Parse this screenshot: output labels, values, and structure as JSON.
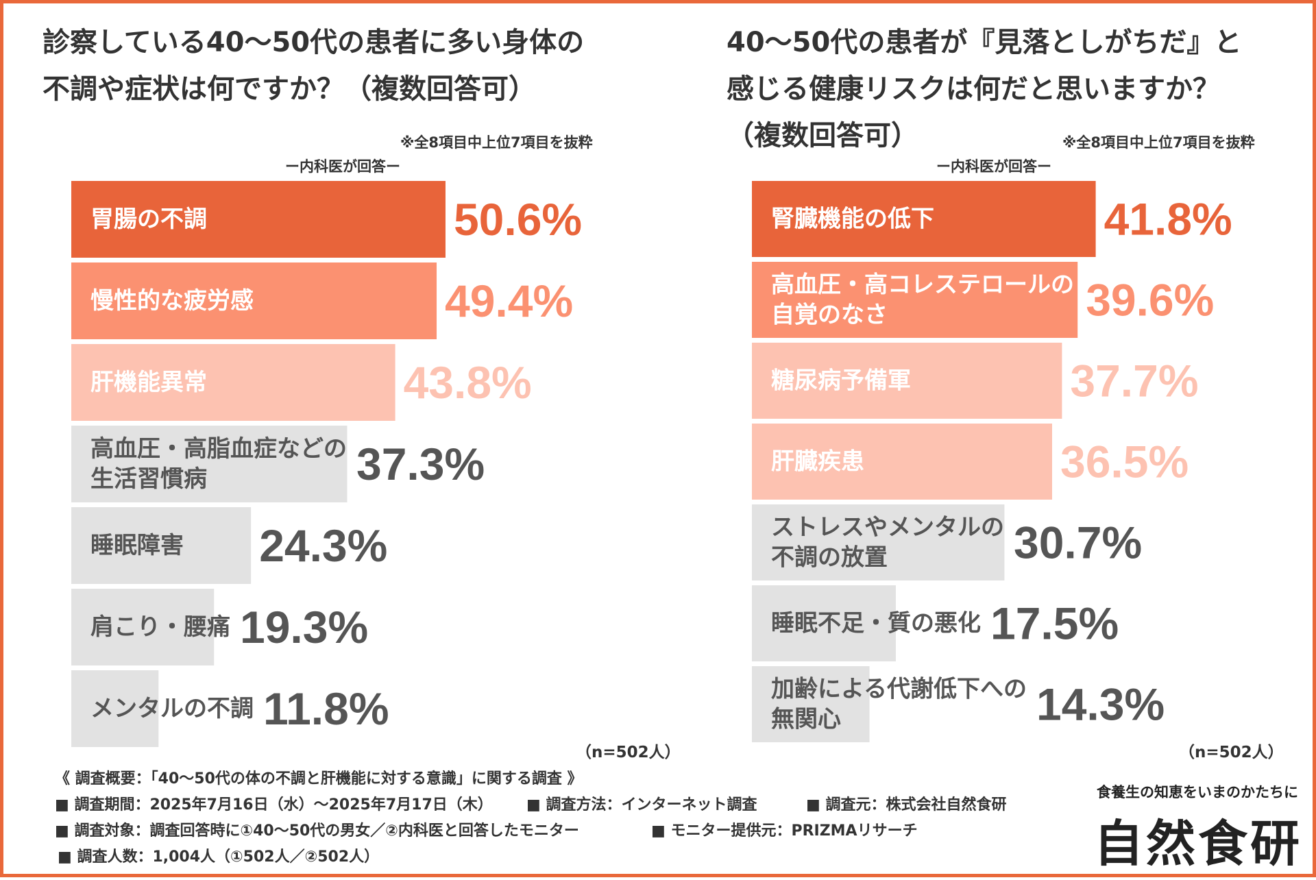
{
  "left": {
    "title_lines": [
      "診察している40〜50代の患者に多い身体の",
      "不調や症状は何ですか？（複数回答可）"
    ],
    "note": "※全8項目中上位7項目を抜粋",
    "respondent": "ー内科医が回答ー",
    "n": "（n=502人）"
  },
  "right": {
    "title_lines": [
      "40〜50代の患者が『見落としがちだ』と",
      "感じる健康リスクは何だと思いますか？",
      "（複数回答可）"
    ],
    "note": "※全8項目中上位7項目を抜粋",
    "respondent": "ー内科医が回答ー",
    "n": "（n=502人）"
  },
  "chart_data": [
    {
      "type": "bar",
      "orientation": "horizontal",
      "title": "診察している40〜50代の患者に多い身体の不調や症状は何ですか？（複数回答可）",
      "unit": "%",
      "categories": [
        [
          "胃腸の不調"
        ],
        [
          "慢性的な疲労感"
        ],
        [
          "肝機能異常"
        ],
        [
          "高血圧・高脂血症などの",
          "生活習慣病"
        ],
        [
          "睡眠障害"
        ],
        [
          "肩こり・腰痛"
        ],
        [
          "メンタルの不調"
        ]
      ],
      "values": [
        50.6,
        49.4,
        43.8,
        37.3,
        24.3,
        19.3,
        11.8
      ],
      "value_labels": [
        "50.6%",
        "49.4%",
        "43.8%",
        "37.3%",
        "24.3%",
        "19.3%",
        "11.8%"
      ],
      "bar_colors": [
        "#e8643a",
        "#fb9171",
        "#fdc2b1",
        "#e2e2e2",
        "#e2e2e2",
        "#e2e2e2",
        "#e2e2e2"
      ],
      "value_colors": [
        "#e8643a",
        "#fb9171",
        "#fdc2b1",
        "#555555",
        "#555555",
        "#555555",
        "#555555"
      ],
      "label_colors": [
        "#ffffff",
        "#ffffff",
        "#ffffff",
        "#555555",
        "#555555",
        "#555555",
        "#555555"
      ]
    },
    {
      "type": "bar",
      "orientation": "horizontal",
      "title": "40〜50代の患者が『見落としがちだ』と感じる健康リスクは何だと思いますか？（複数回答可）",
      "unit": "%",
      "categories": [
        [
          "腎臓機能の低下"
        ],
        [
          "高血圧・高コレステロールの",
          "自覚のなさ"
        ],
        [
          "糖尿病予備軍"
        ],
        [
          "肝臓疾患"
        ],
        [
          "ストレスやメンタルの",
          "不調の放置"
        ],
        [
          "睡眠不足・質の悪化"
        ],
        [
          "加齢による代謝低下への",
          "無関心"
        ]
      ],
      "values": [
        41.8,
        39.6,
        37.7,
        36.5,
        30.7,
        17.5,
        14.3
      ],
      "value_labels": [
        "41.8%",
        "39.6%",
        "37.7%",
        "36.5%",
        "30.7%",
        "17.5%",
        "14.3%"
      ],
      "bar_colors": [
        "#e8643a",
        "#fb9171",
        "#fdc2b1",
        "#fdc2b1",
        "#e2e2e2",
        "#e2e2e2",
        "#e2e2e2"
      ],
      "value_colors": [
        "#e8643a",
        "#fb9171",
        "#fdc2b1",
        "#fdc2b1",
        "#555555",
        "#555555",
        "#555555"
      ],
      "label_colors": [
        "#ffffff",
        "#ffffff",
        "#ffffff",
        "#ffffff",
        "#555555",
        "#555555",
        "#555555"
      ]
    }
  ],
  "summary": {
    "heading": "《 調査概要：「40〜50代の体の不調と肝機能に対する意識」に関する調査 》",
    "period": "■ 調査期間：2025年7月16日（水）〜2025年7月17日（木）",
    "method": "■ 調査方法：インターネット調査",
    "organizer": "■ 調査元：株式会社自然食研",
    "target": "■ 調査対象：調査回答時に①40〜50代の男女／②内科医と回答したモニター",
    "provider": "■ モニター提供元：PRIZMAリサーチ",
    "count": "■ 調査人数：1,004人（①502人／②502人）"
  },
  "brand": {
    "tagline": "食養生の知恵をいまのかたちに",
    "logo": "自然食研"
  }
}
